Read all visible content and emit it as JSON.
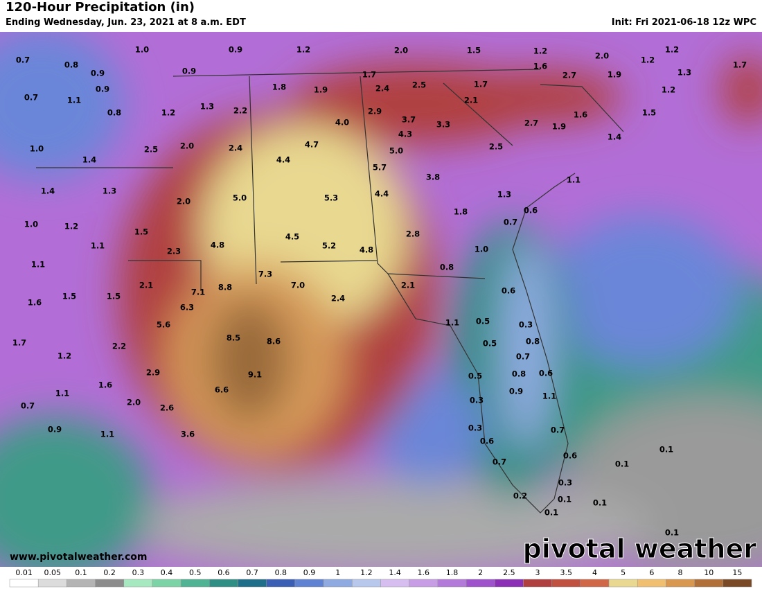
{
  "header": {
    "title": "120-Hour Precipitation (in)",
    "subtitle": "Ending Wednesday, Jun. 23, 2021 at 8 a.m. EDT",
    "init": "Init: Fri 2021-06-18 12z WPC"
  },
  "map": {
    "labels": [
      "0.7",
      "0.8",
      "0.9",
      "0.9",
      "0.7",
      "1.1",
      "0.8",
      "1.0",
      "0.9",
      "1.2",
      "2.0",
      "1.5",
      "1.2",
      "2.0",
      "1.2",
      "1.2",
      "1.3",
      "1.7",
      "0.9",
      "1.8",
      "1.9",
      "1.7",
      "2.4",
      "2.5",
      "1.7",
      "1.6",
      "2.7",
      "1.9",
      "1.2",
      "1.2",
      "1.3",
      "2.2",
      "2.9",
      "3.7",
      "2.1",
      "3.3",
      "4.0",
      "2.7",
      "1.9",
      "1.6",
      "1.5",
      "1.4",
      "1.0",
      "1.4",
      "2.5",
      "2.0",
      "2.4",
      "4.7",
      "4.3",
      "5.0",
      "2.5",
      "4.4",
      "5.7",
      "3.8",
      "1.1",
      "1.4",
      "1.3",
      "2.0",
      "5.0",
      "5.3",
      "4.4",
      "1.3",
      "0.6",
      "1.8",
      "1.0",
      "1.2",
      "1.5",
      "4.5",
      "0.7",
      "2.8",
      "1.1",
      "2.3",
      "4.8",
      "5.2",
      "4.8",
      "1.0",
      "1.1",
      "0.8",
      "7.3",
      "2.1",
      "7.1",
      "8.8",
      "7.0",
      "2.1",
      "0.6",
      "1.6",
      "1.5",
      "1.5",
      "6.3",
      "2.4",
      "1.1",
      "0.5",
      "0.3",
      "5.6",
      "1.7",
      "2.2",
      "8.5",
      "8.6",
      "0.5",
      "0.8",
      "1.2",
      "0.7",
      "9.1",
      "2.9",
      "0.5",
      "0.8",
      "0.6",
      "1.6",
      "6.6",
      "1.1",
      "0.9",
      "1.1",
      "2.0",
      "0.3",
      "2.6",
      "0.7",
      "0.9",
      "1.1",
      "3.6",
      "0.3",
      "0.7",
      "0.6",
      "0.1",
      "0.7",
      "0.6",
      "0.1",
      "0.3",
      "0.2",
      "0.1",
      "0.1",
      "0.1",
      "0.1"
    ],
    "site": "www.pivotalweather.com",
    "logo": "pivotal weather"
  },
  "colorbar": {
    "ticks": [
      0.01,
      0.05,
      0.1,
      0.2,
      0.3,
      0.4,
      0.5,
      0.6,
      0.7,
      0.8,
      0.9,
      1,
      1.2,
      1.4,
      1.6,
      1.8,
      2,
      2.5,
      3,
      3.5,
      4,
      5,
      6,
      8,
      10,
      15
    ],
    "colors": [
      "#ffffff",
      "#dcdcdc",
      "#b4b4b4",
      "#8c8c8c",
      "#a6e8c0",
      "#7cd4a6",
      "#4fb394",
      "#2f8f84",
      "#1f6f8a",
      "#3a5fb4",
      "#5f82d2",
      "#8eaae0",
      "#b7c8ec",
      "#d6bff0",
      "#c79de6",
      "#b37ada",
      "#9e52cc",
      "#8a2fb6",
      "#b04040",
      "#c0503f",
      "#d06848",
      "#e8d890",
      "#f0c070",
      "#d89850",
      "#b07038",
      "#7a4a26"
    ]
  }
}
